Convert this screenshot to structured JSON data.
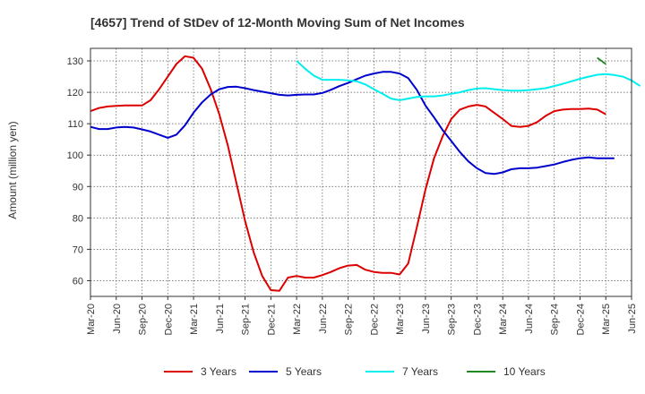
{
  "chart_data": {
    "type": "line",
    "title": "[4657]  Trend of StDev of 12-Month Moving Sum of Net Incomes",
    "ylabel": "Amount (million yen)",
    "xlabel": "",
    "ylim": [
      55,
      134
    ],
    "yticks": [
      60,
      70,
      80,
      90,
      100,
      110,
      120,
      130
    ],
    "x_ticks": [
      "Mar-20",
      "Jun-20",
      "Sep-20",
      "Dec-20",
      "Mar-21",
      "Jun-21",
      "Sep-21",
      "Dec-21",
      "Mar-22",
      "Jun-22",
      "Sep-22",
      "Dec-22",
      "Mar-23",
      "Jun-23",
      "Sep-23",
      "Dec-23",
      "Mar-24",
      "Jun-24",
      "Sep-24",
      "Dec-24",
      "Mar-25",
      "Jun-25"
    ],
    "grid": true,
    "legend_position": "bottom",
    "series": [
      {
        "name": "3 Years",
        "color": "#dd0000",
        "start_index": 0,
        "values": [
          114.0,
          115.0,
          115.5,
          115.7,
          115.8,
          115.8,
          115.8,
          117.5,
          121.0,
          125.0,
          129.0,
          131.5,
          131.0,
          127.5,
          121.0,
          113.0,
          103.0,
          91.0,
          79.0,
          69.0,
          61.5,
          57.0,
          56.8,
          61.0,
          61.5,
          61.0,
          61.0,
          61.8,
          62.8,
          64.0,
          64.8,
          65.0,
          63.5,
          62.8,
          62.5,
          62.5,
          62.0,
          65.5,
          77.0,
          89.0,
          99.0,
          106.0,
          111.5,
          114.5,
          115.5,
          116.0,
          115.5,
          113.5,
          111.5,
          109.3,
          109.0,
          109.3,
          110.5,
          112.5,
          114.0,
          114.5,
          114.7,
          114.7,
          114.8,
          114.5,
          113.0
        ]
      },
      {
        "name": "5 Years",
        "color": "#0000cc",
        "start_index": 0,
        "values": [
          109.0,
          108.3,
          108.3,
          108.8,
          109.0,
          108.8,
          108.2,
          107.5,
          106.5,
          105.5,
          106.5,
          109.5,
          113.5,
          116.8,
          119.3,
          121.0,
          121.7,
          121.8,
          121.3,
          120.7,
          120.2,
          119.7,
          119.2,
          119.0,
          119.2,
          119.3,
          119.3,
          119.8,
          120.8,
          122.0,
          123.0,
          124.2,
          125.3,
          126.0,
          126.5,
          126.5,
          126.0,
          124.5,
          120.8,
          115.8,
          112.0,
          108.0,
          104.5,
          101.0,
          98.0,
          95.8,
          94.3,
          94.0,
          94.5,
          95.5,
          95.8,
          95.8,
          96.0,
          96.5,
          97.0,
          97.8,
          98.5,
          99.0,
          99.3,
          99.0,
          99.0,
          99.0
        ]
      },
      {
        "name": "7 Years",
        "color": "#00eeee",
        "start_index": 24,
        "values": [
          130.0,
          127.5,
          125.3,
          124.0,
          124.0,
          124.0,
          123.8,
          123.5,
          122.5,
          121.0,
          119.5,
          118.0,
          117.5,
          118.0,
          118.5,
          118.7,
          118.7,
          119.0,
          119.5,
          120.0,
          120.7,
          121.2,
          121.3,
          121.0,
          120.7,
          120.5,
          120.5,
          120.7,
          121.0,
          121.3,
          122.0,
          122.7,
          123.5,
          124.3,
          125.0,
          125.6,
          125.8,
          125.5,
          125.0,
          123.8,
          122.0
        ]
      },
      {
        "name": "10 Years",
        "color": "#228822",
        "start_index": 59,
        "values": [
          131.0,
          129.0
        ]
      }
    ]
  }
}
